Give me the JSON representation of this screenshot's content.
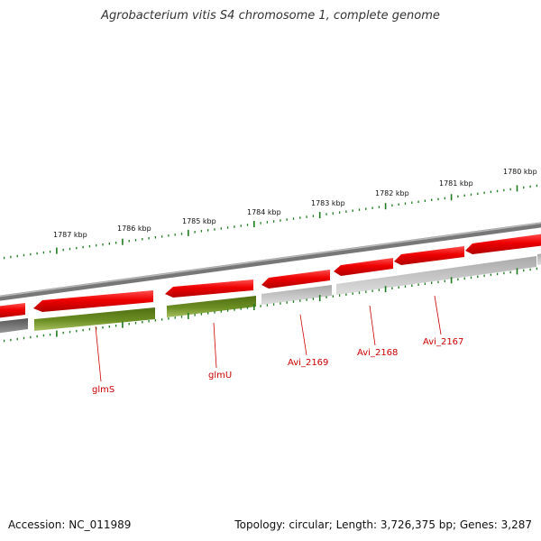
{
  "title": "Agrobacterium vitis S4 chromosome 1, complete genome",
  "footer": {
    "accession": "Accession: NC_011989",
    "summary": "Topology: circular; Length: 3,726,375 bp; Genes: 3,287"
  },
  "colors": {
    "forward_gene": "#ee0000",
    "reverse_gene_named": "#6b8e23",
    "reverse_gene_other": "#bbbbbb",
    "backbone": "#888888",
    "tick": "#1e7a1e",
    "label": "#cc0000"
  },
  "ticks": [
    {
      "label": "1787 kbp"
    },
    {
      "label": "1786 kbp"
    },
    {
      "label": "1785 kbp"
    },
    {
      "label": "1784 kbp"
    },
    {
      "label": "1783 kbp"
    },
    {
      "label": "1782 kbp"
    },
    {
      "label": "1781 kbp"
    },
    {
      "label": "1780 kbp"
    }
  ],
  "genes": [
    {
      "name": "glmS"
    },
    {
      "name": "glmU"
    },
    {
      "name": "Avi_2169"
    },
    {
      "name": "Avi_2168"
    },
    {
      "name": "Avi_2167"
    }
  ]
}
